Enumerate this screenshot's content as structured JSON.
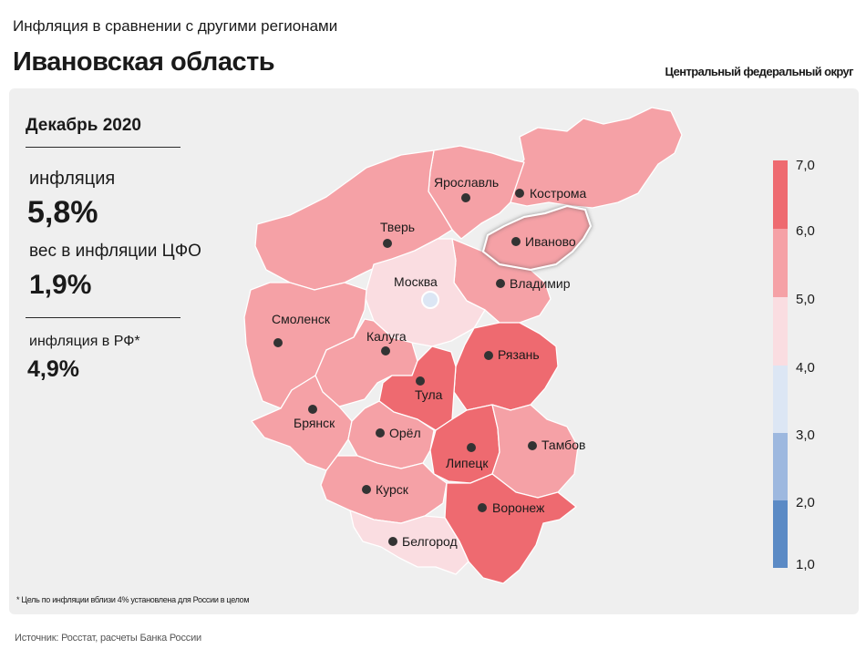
{
  "header": {
    "subtitle": "Инфляция в сравнении с другими регионами",
    "title": "Ивановская область",
    "district": "Центральный федеральный округ"
  },
  "info": {
    "period": "Декабрь 2020",
    "inflation_label": "инфляция",
    "inflation_value": "5,8%",
    "weight_label": "вес в инфляции ЦФО",
    "weight_value": "1,9%",
    "rf_label": "инфляция в РФ*",
    "rf_value": "4,9%"
  },
  "footnote": "* Цель по инфляции вблизи 4% установлена для России в целом",
  "source": "Источник: Росстат, расчеты Банка России",
  "colors": {
    "band_1_2": "#5b8ac5",
    "band_2_3": "#9db8df",
    "band_3_4": "#dce6f4",
    "band_4_5": "#fadde1",
    "band_5_6": "#f5a1a6",
    "band_6_7": "#ee6a70",
    "panel": "#efefef"
  },
  "legend": {
    "ticks": [
      "7,0",
      "6,0",
      "5,0",
      "4,0",
      "3,0",
      "2,0",
      "1,0"
    ]
  },
  "regions": [
    {
      "id": "kostroma",
      "label": "Кострома",
      "band": "5-6"
    },
    {
      "id": "yaroslavl",
      "label": "Ярославль",
      "band": "5-6"
    },
    {
      "id": "tver",
      "label": "Тверь",
      "band": "5-6"
    },
    {
      "id": "ivanovo",
      "label": "Иваново",
      "band": "5-6",
      "highlighted": true
    },
    {
      "id": "vladimir",
      "label": "Владимир",
      "band": "5-6"
    },
    {
      "id": "moskva",
      "label": "Москва",
      "band": "4-5",
      "capital": true
    },
    {
      "id": "smolensk",
      "label": "Смоленск",
      "band": "5-6"
    },
    {
      "id": "kaluga",
      "label": "Калуга",
      "band": "5-6"
    },
    {
      "id": "ryazan",
      "label": "Рязань",
      "band": "6-7"
    },
    {
      "id": "tula",
      "label": "Тула",
      "band": "6-7"
    },
    {
      "id": "bryansk",
      "label": "Брянск",
      "band": "5-6"
    },
    {
      "id": "oryol",
      "label": "Орёл",
      "band": "5-6"
    },
    {
      "id": "lipetsk",
      "label": "Липецк",
      "band": "6-7"
    },
    {
      "id": "tambov",
      "label": "Тамбов",
      "band": "5-6"
    },
    {
      "id": "kursk",
      "label": "Курск",
      "band": "5-6"
    },
    {
      "id": "voronezh",
      "label": "Воронеж",
      "band": "6-7"
    },
    {
      "id": "belgorod",
      "label": "Белгород",
      "band": "4-5"
    }
  ]
}
